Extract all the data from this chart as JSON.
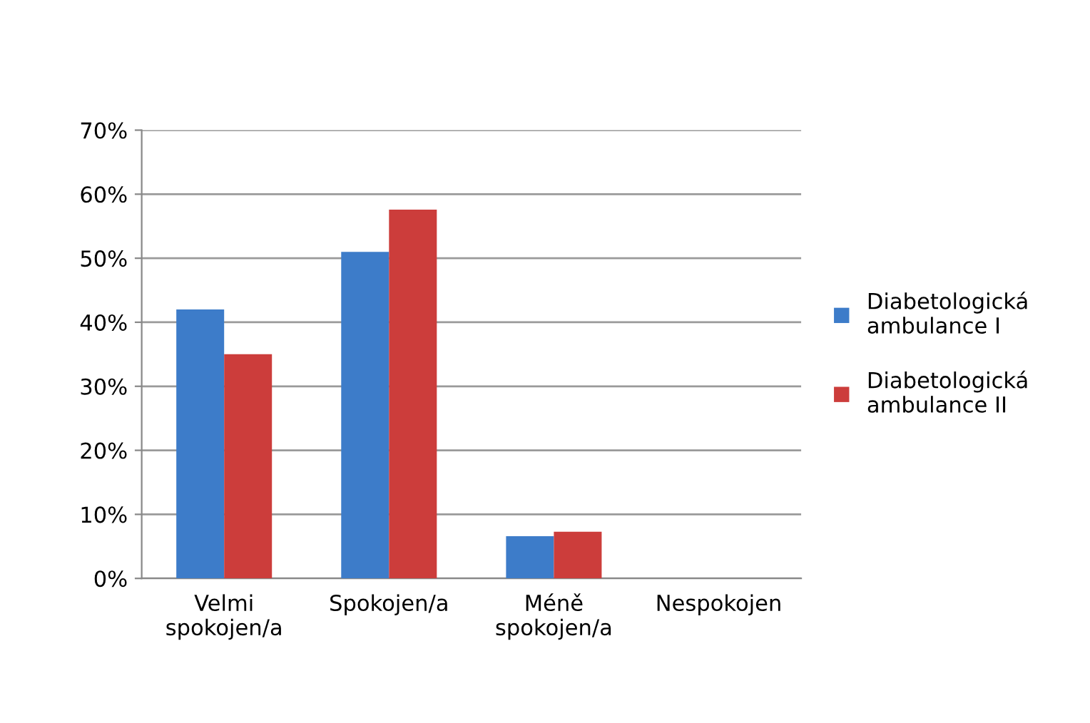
{
  "chart_data": {
    "type": "bar",
    "categories": [
      "Velmi\nspokojen/a",
      "Spokojen/a",
      "Méně\nspokojen/a",
      "Nespokojen"
    ],
    "series": [
      {
        "name": "Diabetologická\nambulance I",
        "color": "#3d7cc9",
        "values": [
          42,
          51,
          6.6,
          0
        ]
      },
      {
        "name": "Diabetologická\nambulance II",
        "color": "#cc3d3b",
        "values": [
          35,
          57.6,
          7.3,
          0
        ]
      }
    ],
    "ylim": [
      0,
      70
    ],
    "yticks": [
      {
        "value": 0,
        "label": "0%"
      },
      {
        "value": 10,
        "label": "10%"
      },
      {
        "value": 20,
        "label": "20%"
      },
      {
        "value": 30,
        "label": "30%"
      },
      {
        "value": 40,
        "label": "40%"
      },
      {
        "value": 50,
        "label": "50%"
      },
      {
        "value": 60,
        "label": "60%"
      },
      {
        "value": 70,
        "label": "70%"
      }
    ],
    "grid": "y",
    "legend": "right"
  }
}
